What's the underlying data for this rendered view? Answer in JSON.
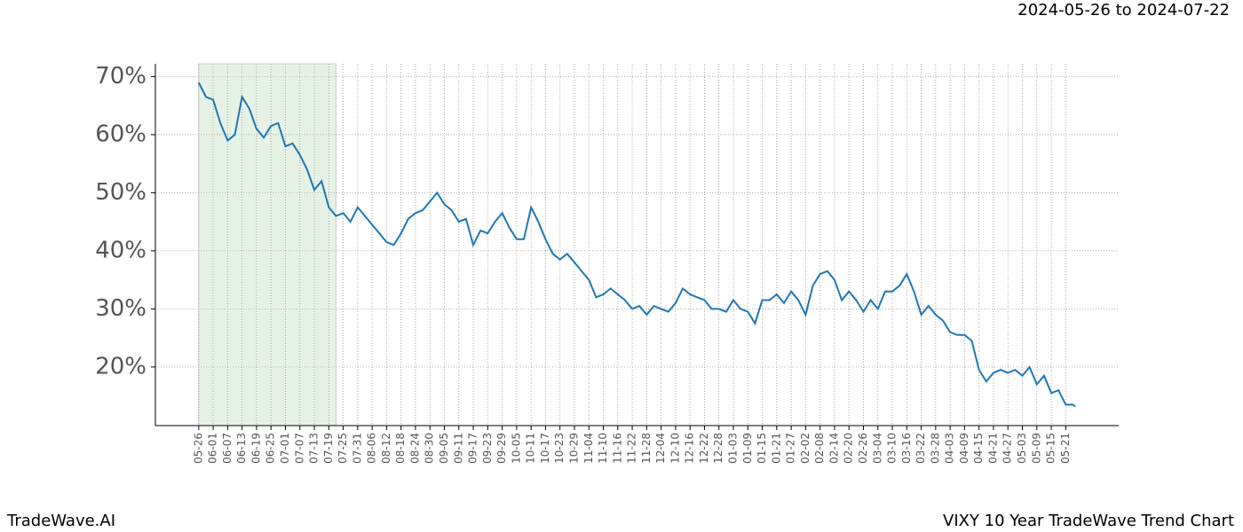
{
  "chart_data": {
    "type": "line",
    "title": "2024-05-26 to 2024-07-22",
    "footer_left": "TradeWave.AI",
    "footer_right": "VIXY 10 Year TradeWave Trend Chart",
    "xlim": [
      -18,
      382
    ],
    "ylim": [
      9.9,
      72.2
    ],
    "shade": [
      0,
      57
    ],
    "shade_color": "#e6f2e6",
    "grid": true,
    "xticks": [
      {
        "value": 0,
        "label": "05-26"
      },
      {
        "value": 6,
        "label": "06-01"
      },
      {
        "value": 12,
        "label": "06-07"
      },
      {
        "value": 18,
        "label": "06-13"
      },
      {
        "value": 24,
        "label": "06-19"
      },
      {
        "value": 30,
        "label": "06-25"
      },
      {
        "value": 36,
        "label": "07-01"
      },
      {
        "value": 42,
        "label": "07-07"
      },
      {
        "value": 48,
        "label": "07-13"
      },
      {
        "value": 54,
        "label": "07-19"
      },
      {
        "value": 60,
        "label": "07-25"
      },
      {
        "value": 66,
        "label": "07-31"
      },
      {
        "value": 72,
        "label": "08-06"
      },
      {
        "value": 78,
        "label": "08-12"
      },
      {
        "value": 84,
        "label": "08-18"
      },
      {
        "value": 90,
        "label": "08-24"
      },
      {
        "value": 96,
        "label": "08-30"
      },
      {
        "value": 102,
        "label": "09-05"
      },
      {
        "value": 108,
        "label": "09-11"
      },
      {
        "value": 114,
        "label": "09-17"
      },
      {
        "value": 120,
        "label": "09-23"
      },
      {
        "value": 126,
        "label": "09-29"
      },
      {
        "value": 132,
        "label": "10-05"
      },
      {
        "value": 138,
        "label": "10-11"
      },
      {
        "value": 144,
        "label": "10-17"
      },
      {
        "value": 150,
        "label": "10-23"
      },
      {
        "value": 156,
        "label": "10-29"
      },
      {
        "value": 162,
        "label": "11-04"
      },
      {
        "value": 168,
        "label": "11-10"
      },
      {
        "value": 174,
        "label": "11-16"
      },
      {
        "value": 180,
        "label": "11-22"
      },
      {
        "value": 186,
        "label": "11-28"
      },
      {
        "value": 192,
        "label": "12-04"
      },
      {
        "value": 198,
        "label": "12-10"
      },
      {
        "value": 204,
        "label": "12-16"
      },
      {
        "value": 210,
        "label": "12-22"
      },
      {
        "value": 216,
        "label": "12-28"
      },
      {
        "value": 222,
        "label": "01-03"
      },
      {
        "value": 228,
        "label": "01-09"
      },
      {
        "value": 234,
        "label": "01-15"
      },
      {
        "value": 240,
        "label": "01-21"
      },
      {
        "value": 246,
        "label": "01-27"
      },
      {
        "value": 252,
        "label": "02-02"
      },
      {
        "value": 258,
        "label": "02-08"
      },
      {
        "value": 264,
        "label": "02-14"
      },
      {
        "value": 270,
        "label": "02-20"
      },
      {
        "value": 276,
        "label": "02-26"
      },
      {
        "value": 282,
        "label": "03-04"
      },
      {
        "value": 288,
        "label": "03-10"
      },
      {
        "value": 294,
        "label": "03-16"
      },
      {
        "value": 300,
        "label": "03-22"
      },
      {
        "value": 306,
        "label": "03-28"
      },
      {
        "value": 312,
        "label": "04-03"
      },
      {
        "value": 318,
        "label": "04-09"
      },
      {
        "value": 324,
        "label": "04-15"
      },
      {
        "value": 330,
        "label": "04-21"
      },
      {
        "value": 336,
        "label": "04-27"
      },
      {
        "value": 342,
        "label": "05-03"
      },
      {
        "value": 348,
        "label": "05-09"
      },
      {
        "value": 354,
        "label": "05-15"
      },
      {
        "value": 360,
        "label": "05-21"
      }
    ],
    "yticks": [
      {
        "value": 20,
        "label": "20%"
      },
      {
        "value": 30,
        "label": "30%"
      },
      {
        "value": 40,
        "label": "40%"
      },
      {
        "value": 50,
        "label": "50%"
      },
      {
        "value": 60,
        "label": "60%"
      },
      {
        "value": 70,
        "label": "70%"
      }
    ],
    "x": [
      0,
      3,
      6,
      9,
      12,
      15,
      18,
      21,
      24,
      27,
      30,
      33,
      36,
      39,
      42,
      45,
      48,
      51,
      54,
      57,
      60,
      63,
      66,
      69,
      72,
      75,
      78,
      81,
      84,
      87,
      90,
      93,
      96,
      99,
      102,
      105,
      108,
      111,
      114,
      117,
      120,
      123,
      126,
      129,
      132,
      135,
      138,
      141,
      144,
      147,
      150,
      153,
      156,
      159,
      162,
      165,
      168,
      171,
      174,
      177,
      180,
      183,
      186,
      189,
      192,
      195,
      198,
      201,
      204,
      207,
      210,
      213,
      216,
      219,
      222,
      225,
      228,
      231,
      234,
      237,
      240,
      243,
      246,
      249,
      252,
      255,
      258,
      261,
      264,
      267,
      270,
      273,
      276,
      279,
      282,
      285,
      288,
      291,
      294,
      297,
      300,
      303,
      306,
      309,
      312,
      315,
      318,
      321,
      324,
      327,
      330,
      333,
      336,
      339,
      342,
      345,
      348,
      351,
      354,
      357,
      360,
      363,
      364
    ],
    "series": [
      {
        "color": "#1f77b4",
        "values": [
          69,
          66.5,
          66,
          62,
          59,
          60,
          66.5,
          64.5,
          61,
          59.5,
          61.5,
          62,
          58,
          58.5,
          56.5,
          54,
          50.5,
          52,
          47.5,
          46,
          46.5,
          45,
          47.5,
          46,
          44.5,
          43,
          41.5,
          41,
          43,
          45.5,
          46.5,
          47,
          48.5,
          50,
          48,
          47,
          45,
          45.5,
          41,
          43.5,
          43,
          45,
          46.5,
          44,
          42,
          42,
          47.5,
          45,
          42,
          39.5,
          38.5,
          39.5,
          38,
          36.5,
          35,
          32,
          32.5,
          33.5,
          32.5,
          31.5,
          30,
          30.5,
          29,
          30.5,
          30,
          29.5,
          31,
          33.5,
          32.5,
          32,
          31.5,
          30,
          30,
          29.5,
          31.5,
          30,
          29.5,
          27.5,
          31.5,
          31.5,
          32.5,
          31,
          33,
          31.5,
          29,
          34,
          36,
          36.5,
          35,
          31.5,
          33,
          31.5,
          29.5,
          31.5,
          30,
          33,
          33,
          34,
          36,
          33,
          29,
          30.5,
          29,
          28,
          26,
          25.5,
          25.5,
          24.5,
          19.5,
          17.5,
          19,
          19.5,
          19,
          19.5,
          18.5,
          20,
          17,
          18.5,
          15.5,
          16,
          13.5,
          13.5,
          13.2
        ]
      }
    ]
  }
}
